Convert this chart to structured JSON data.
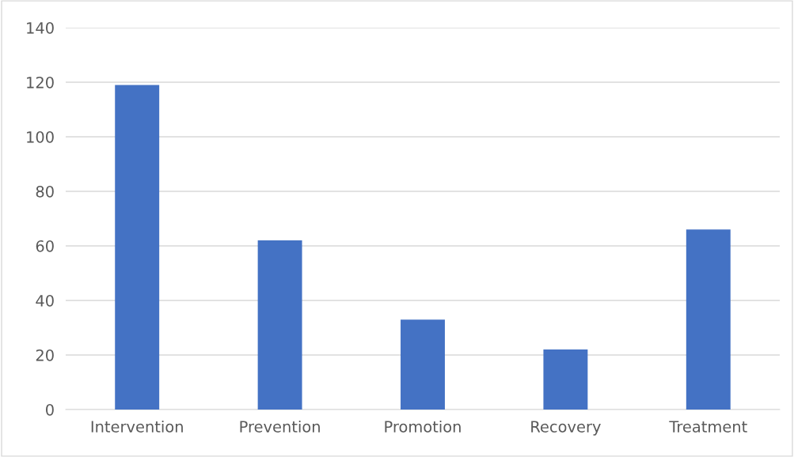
{
  "chart_data": {
    "type": "bar",
    "categories": [
      "Intervention",
      "Prevention",
      "Promotion",
      "Recovery",
      "Treatment"
    ],
    "values": [
      119,
      62,
      33,
      22,
      66
    ],
    "color": "#4472c4",
    "ylim": [
      0,
      140
    ],
    "yticks": [
      0,
      20,
      40,
      60,
      80,
      100,
      120,
      140
    ],
    "grid": "y"
  }
}
